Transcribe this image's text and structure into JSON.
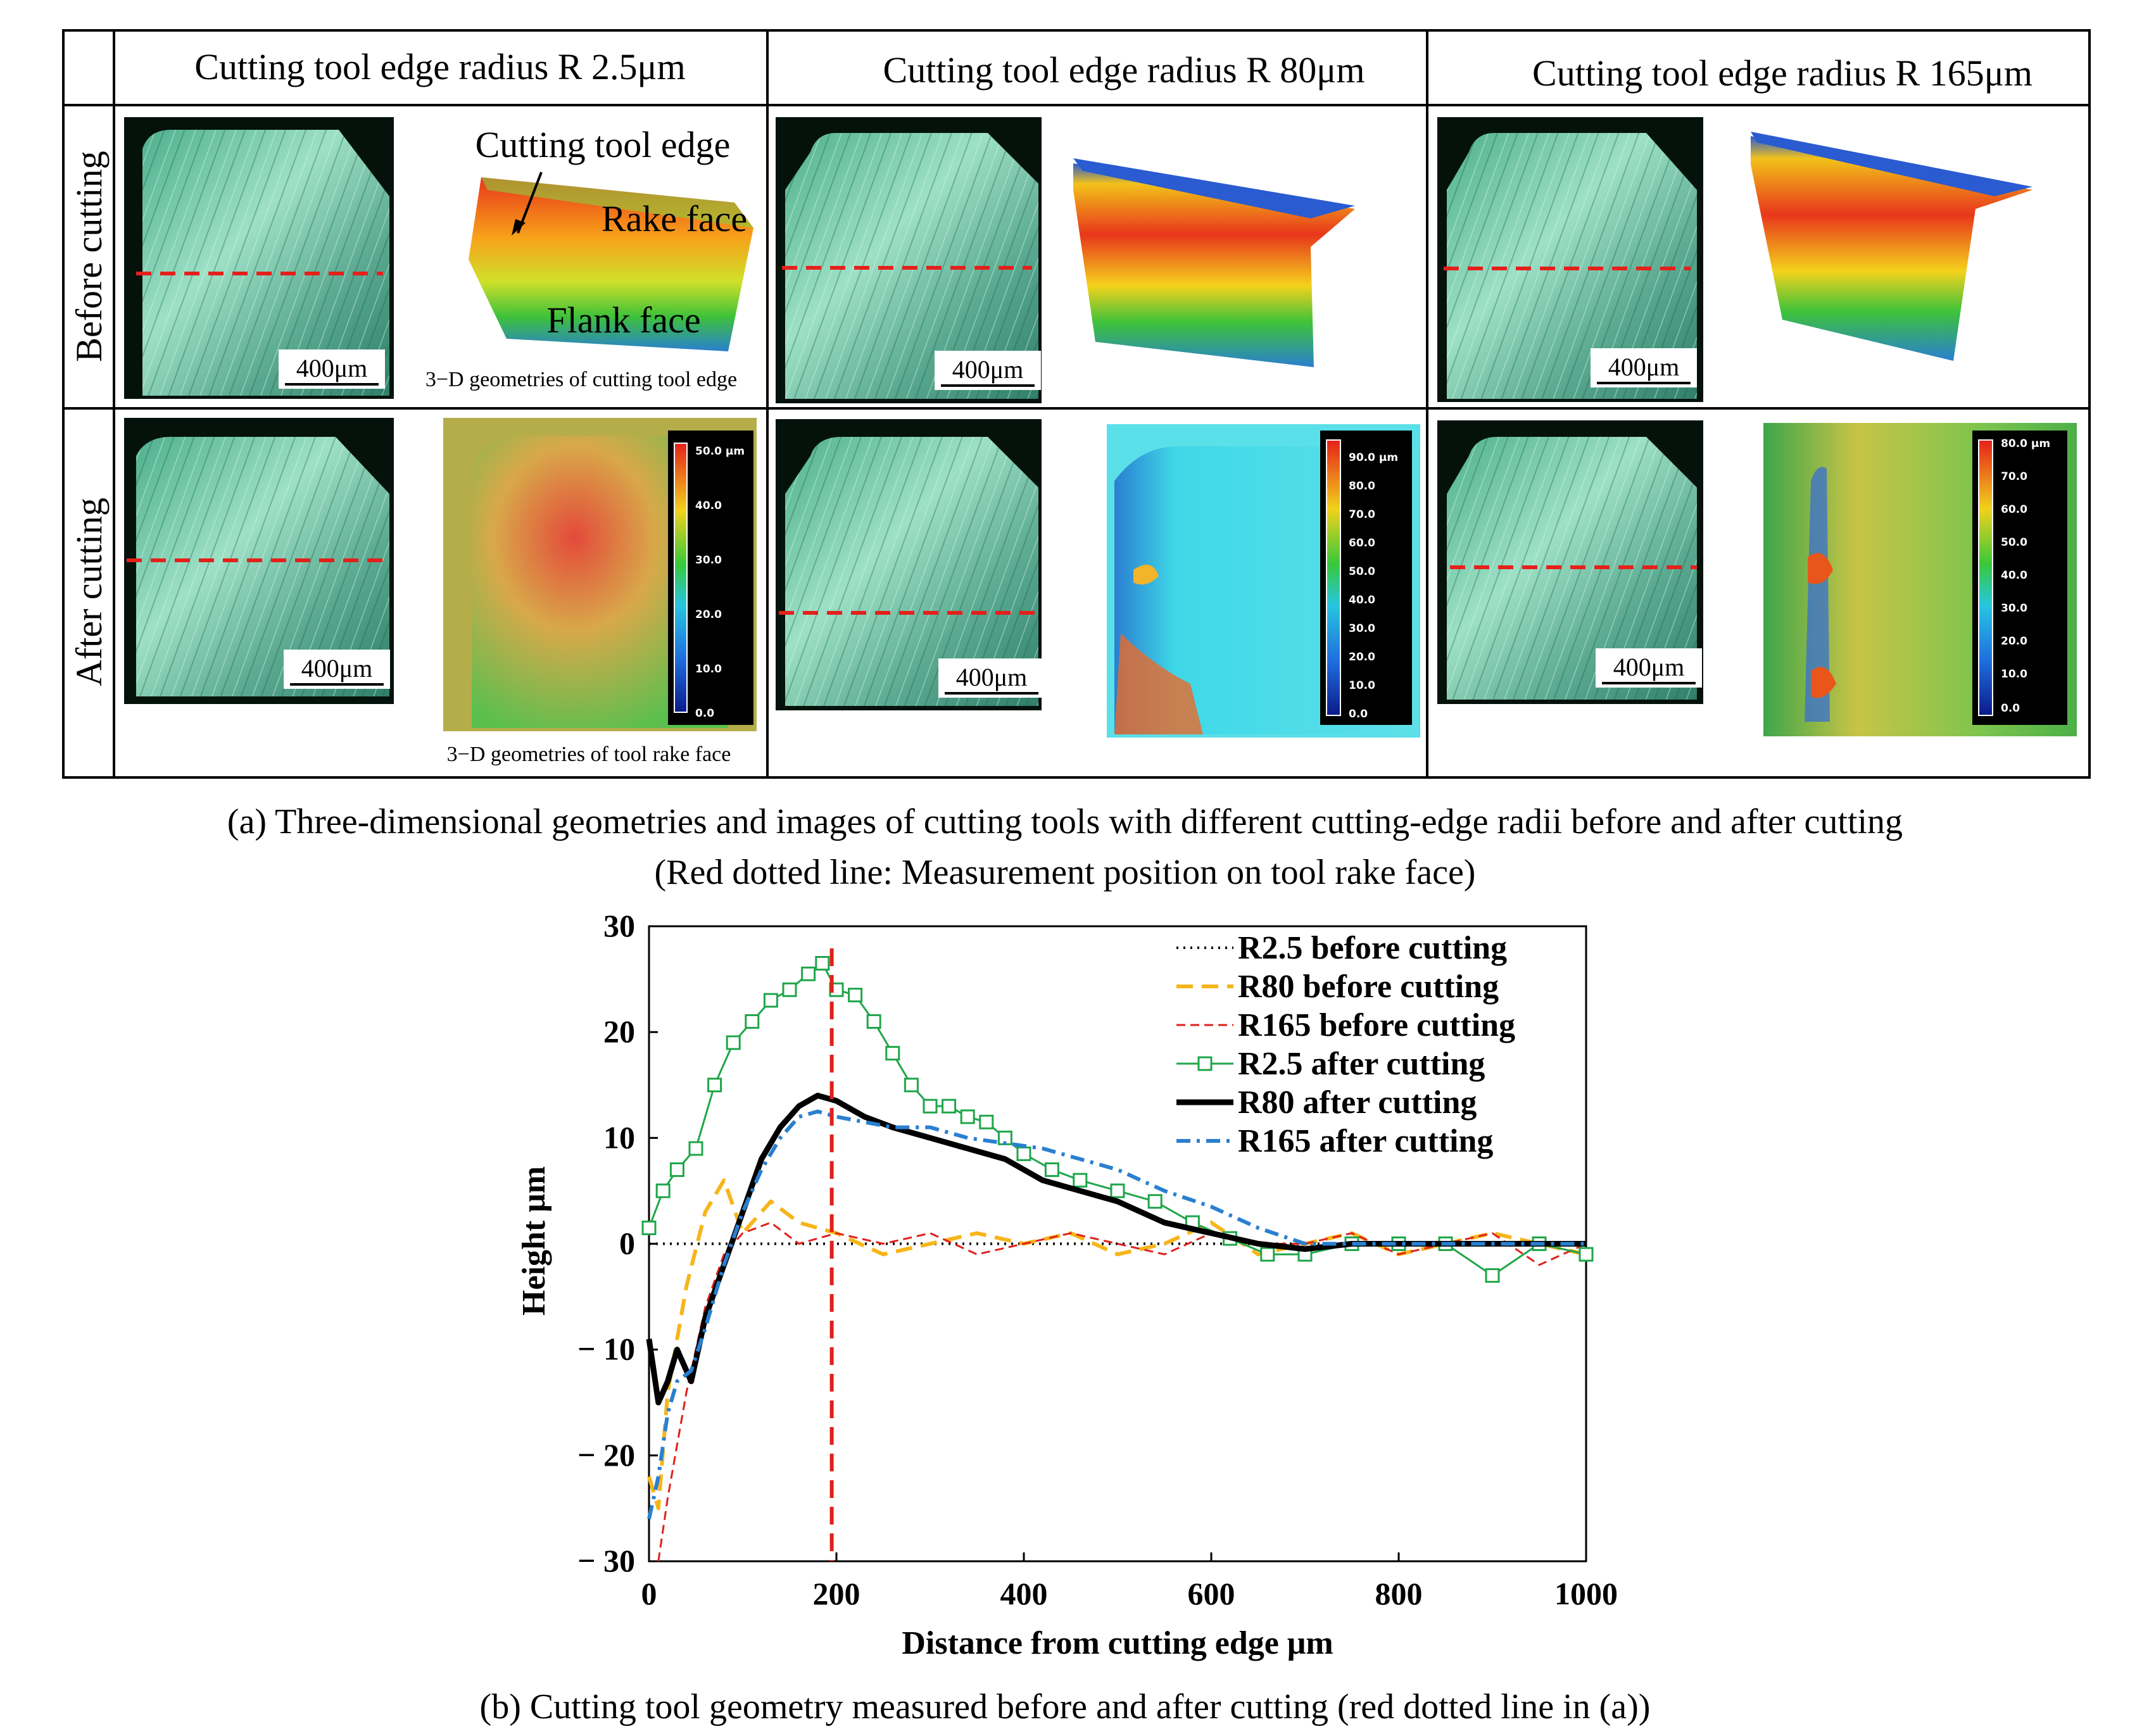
{
  "panel_a": {
    "columns": [
      {
        "header": "Cutting tool edge radius R 2.5μm"
      },
      {
        "header": "Cutting tool edge radius R 80μm"
      },
      {
        "header": "Cutting tool edge radius R 165μm"
      }
    ],
    "rows": [
      {
        "label": "Before cutting"
      },
      {
        "label": "After cutting"
      }
    ],
    "scale_bar": "400μm",
    "annotations": {
      "cutting_tool_edge": "Cutting tool edge",
      "rake_face": "Rake face",
      "flank_face": "Flank face",
      "edge_geometry_caption": "3−D geometries of cutting tool edge",
      "rake_geometry_caption": "3−D geometries of tool rake face"
    },
    "colorbars": [
      {
        "ticks": [
          "50.0 μm",
          "40.0",
          "30.0",
          "20.0",
          "10.0",
          "0.0"
        ]
      },
      {
        "ticks": [
          "90.0 μm",
          "80.0",
          "70.0",
          "60.0",
          "50.0",
          "40.0",
          "30.0",
          "20.0",
          "10.0",
          "0.0"
        ]
      },
      {
        "ticks": [
          "80.0 μm",
          "70.0",
          "60.0",
          "50.0",
          "40.0",
          "30.0",
          "20.0",
          "10.0",
          "0.0"
        ]
      }
    ],
    "caption_line1": "(a)  Three-dimensional geometries and images of cutting tools with different cutting-edge radii before and after cutting",
    "caption_line2": "(Red dotted line: Measurement position on tool rake face)"
  },
  "chart_data": {
    "type": "line",
    "title": "",
    "xlabel": "Distance from cutting edge μm",
    "ylabel": "Height μm",
    "xlim": [
      0,
      1000
    ],
    "ylim": [
      -30,
      30
    ],
    "xticks": [
      0,
      200,
      400,
      600,
      800,
      1000
    ],
    "xtick_labels": [
      "0",
      "200",
      "400",
      "600",
      "800",
      "1000"
    ],
    "yticks": [
      -30,
      -20,
      -10,
      0,
      10,
      20,
      30
    ],
    "ytick_labels": [
      "− 30",
      "− 20",
      "− 10",
      "0",
      "10",
      "20",
      "30"
    ],
    "legend_position": "top-right",
    "marker_line": {
      "x": 195,
      "label": "Measurement position",
      "color": "#e0201b"
    },
    "series": [
      {
        "name": "R2.5 before cutting",
        "color": "#000000",
        "style": "dotted",
        "x": [
          0,
          50,
          100,
          150,
          200,
          250,
          300,
          400,
          500,
          600,
          700,
          800,
          900,
          1000
        ],
        "y": [
          0,
          0,
          0,
          0,
          0,
          0,
          0,
          0,
          0,
          0,
          0,
          0,
          0,
          0
        ]
      },
      {
        "name": "R80 before cutting",
        "color": "#f6b519",
        "style": "dashed",
        "x": [
          0,
          10,
          20,
          40,
          60,
          80,
          100,
          130,
          160,
          200,
          250,
          300,
          350,
          400,
          450,
          500,
          550,
          600,
          650,
          700,
          750,
          800,
          850,
          900,
          950,
          1000
        ],
        "y": [
          -22,
          -25,
          -14,
          -4,
          3,
          6,
          1,
          4,
          2,
          1,
          -1,
          0,
          1,
          0,
          1,
          -1,
          0,
          2,
          -1,
          0,
          1,
          -1,
          0,
          1,
          0,
          -1
        ]
      },
      {
        "name": "R165 before cutting",
        "color": "#e0201b",
        "style": "dashed-thin",
        "x": [
          10,
          20,
          40,
          60,
          80,
          100,
          130,
          160,
          200,
          250,
          300,
          350,
          400,
          450,
          500,
          550,
          600,
          650,
          700,
          750,
          800,
          850,
          900,
          950,
          1000
        ],
        "y": [
          -30,
          -24,
          -14,
          -6,
          -1,
          1,
          2,
          0,
          1,
          0,
          1,
          -1,
          0,
          1,
          0,
          -1,
          1,
          0,
          0,
          1,
          -1,
          0,
          1,
          -2,
          0
        ]
      },
      {
        "name": "R2.5 after cutting",
        "color": "#1fa64a",
        "style": "solid-square-markers",
        "x": [
          0,
          15,
          30,
          50,
          70,
          90,
          110,
          130,
          150,
          170,
          185,
          200,
          220,
          240,
          260,
          280,
          300,
          320,
          340,
          360,
          380,
          400,
          430,
          460,
          500,
          540,
          580,
          620,
          660,
          700,
          750,
          800,
          850,
          900,
          950,
          1000
        ],
        "y": [
          1.5,
          5,
          7,
          9,
          15,
          19,
          21,
          23,
          24,
          25.5,
          26.5,
          24,
          23.5,
          21,
          18,
          15,
          13,
          13,
          12,
          11.5,
          10,
          8.5,
          7,
          6,
          5,
          4,
          2,
          0.5,
          -1,
          -1,
          0,
          0,
          0,
          -3,
          0,
          -1
        ]
      },
      {
        "name": "R80 after cutting",
        "color": "#000000",
        "style": "thick",
        "x": [
          0,
          10,
          20,
          30,
          45,
          60,
          80,
          100,
          120,
          140,
          160,
          180,
          200,
          230,
          260,
          300,
          340,
          380,
          420,
          460,
          500,
          550,
          600,
          650,
          700,
          750,
          800,
          850,
          900,
          950,
          1000
        ],
        "y": [
          -9,
          -15,
          -13,
          -10,
          -13,
          -7,
          -2,
          3,
          8,
          11,
          13,
          14,
          13.5,
          12,
          11,
          10,
          9,
          8,
          6,
          5,
          4,
          2,
          1,
          0,
          -0.5,
          0,
          0,
          0,
          0,
          0,
          0
        ]
      },
      {
        "name": "R165 after cutting",
        "color": "#2a7fd0",
        "style": "dash-dot",
        "x": [
          0,
          10,
          20,
          30,
          45,
          60,
          80,
          100,
          120,
          140,
          160,
          180,
          200,
          230,
          260,
          300,
          340,
          380,
          420,
          460,
          500,
          550,
          600,
          650,
          700,
          750,
          800,
          850,
          900,
          950,
          1000
        ],
        "y": [
          -26,
          -22,
          -16,
          -13,
          -12,
          -8,
          -2,
          3,
          7,
          10,
          12,
          12.5,
          12,
          11.5,
          11,
          11,
          10,
          9.5,
          9,
          8,
          7,
          5,
          3.5,
          1.5,
          0,
          0,
          0,
          0,
          0,
          0,
          0
        ]
      }
    ],
    "caption": "(b) Cutting tool geometry measured before and after cutting  (red dotted line in (a))"
  }
}
